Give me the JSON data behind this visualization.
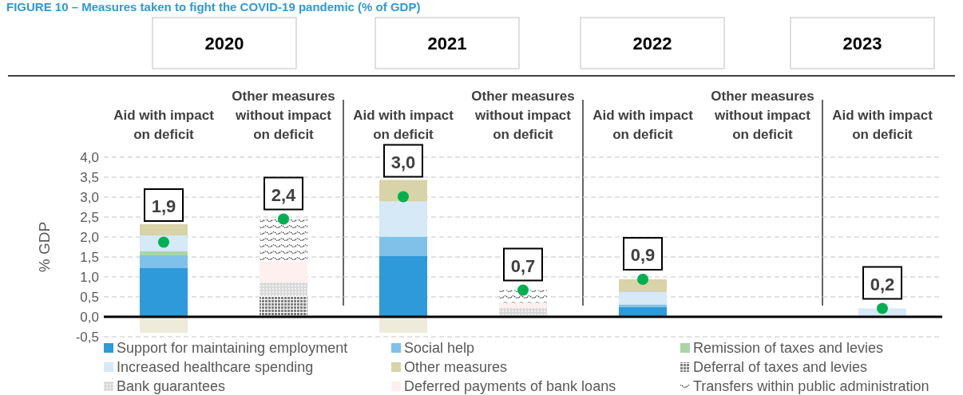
{
  "chart_data": {
    "type": "bar",
    "stacked": true,
    "title": "FIGURE 10 – Measures taken to fight the COVID-19 pandemic (% of GDP)",
    "ylabel": "% GDP",
    "annotations": [
      "2020",
      "2021",
      "2022",
      "2023"
    ],
    "categories": [
      "Aid with impact\non deficit",
      "Other measures\nwithout impact\non deficit",
      "Aid with impact\non deficit",
      "Other measures\nwithout impact\non deficit",
      "Aid with impact\non deficit",
      "Other measures\nwithout impact\non deficit",
      "Aid with impact\non deficit"
    ],
    "series": [
      {
        "name": "Support for maintaining employment",
        "color": "#2e9ad9",
        "values": [
          1.22,
          null,
          1.52,
          null,
          0.25,
          null,
          null
        ]
      },
      {
        "name": "Social help",
        "color": "#7fc1e8",
        "values": [
          0.32,
          null,
          0.49,
          null,
          0.06,
          null,
          null
        ]
      },
      {
        "name": "Remission of taxes and levies",
        "color": "#a9d5a8",
        "values": [
          0.1,
          null,
          null,
          null,
          null,
          null,
          null
        ]
      },
      {
        "name": "Increased healthcare spending",
        "color": "#d5e9f6",
        "values": [
          0.4,
          null,
          0.88,
          null,
          0.31,
          null,
          0.21
        ]
      },
      {
        "name": "Other measures",
        "color": "#d8d3a8",
        "values": [
          0.28,
          null,
          0.54,
          null,
          0.32,
          null,
          null
        ]
      },
      {
        "color": "#eeebdb",
        "values": [
          -0.4,
          null,
          -0.4,
          null,
          null,
          null,
          null
        ]
      },
      {
        "name": "Deferral of taxes and levies",
        "color": "#7f7f7f",
        "values": [
          null,
          0.52,
          null,
          null,
          null,
          null,
          null
        ]
      },
      {
        "name": "Bank guarantees",
        "color": "#d9d9d9",
        "values": [
          null,
          0.34,
          null,
          0.23,
          null,
          null,
          null
        ]
      },
      {
        "name": "Deferred payments of bank loans",
        "color": "#fdf0ee",
        "values": [
          null,
          0.52,
          null,
          0.12,
          null,
          null,
          null
        ]
      },
      {
        "name": "Transfers within public administration",
        "color": "#404040",
        "values": [
          null,
          1.06,
          null,
          0.32,
          null,
          null,
          null
        ]
      },
      {
        "type": "scatter",
        "color": "#00b050",
        "values": [
          1.87,
          2.45,
          3.01,
          0.67,
          0.94,
          null,
          0.21
        ],
        "value_labels": [
          "1,9",
          "2,4",
          "3,0",
          "0,7",
          "0,9",
          null,
          "0,2"
        ]
      }
    ],
    "ylim": [
      -0.5,
      4.0
    ],
    "yticks": [
      {
        "value": -0.5,
        "label": "-0,5"
      },
      {
        "value": 0,
        "label": "0,0"
      },
      {
        "value": 0.5,
        "label": "0,5"
      },
      {
        "value": 1,
        "label": "1,0"
      },
      {
        "value": 1.5,
        "label": "1,5"
      },
      {
        "value": 2,
        "label": "2,0"
      },
      {
        "value": 2.5,
        "label": "2,5"
      },
      {
        "value": 3,
        "label": "3,0"
      },
      {
        "value": 3.5,
        "label": "3,5"
      },
      {
        "value": 4,
        "label": "4,0"
      }
    ],
    "grid": "y",
    "legend": "bottom",
    "marker": "circle"
  }
}
